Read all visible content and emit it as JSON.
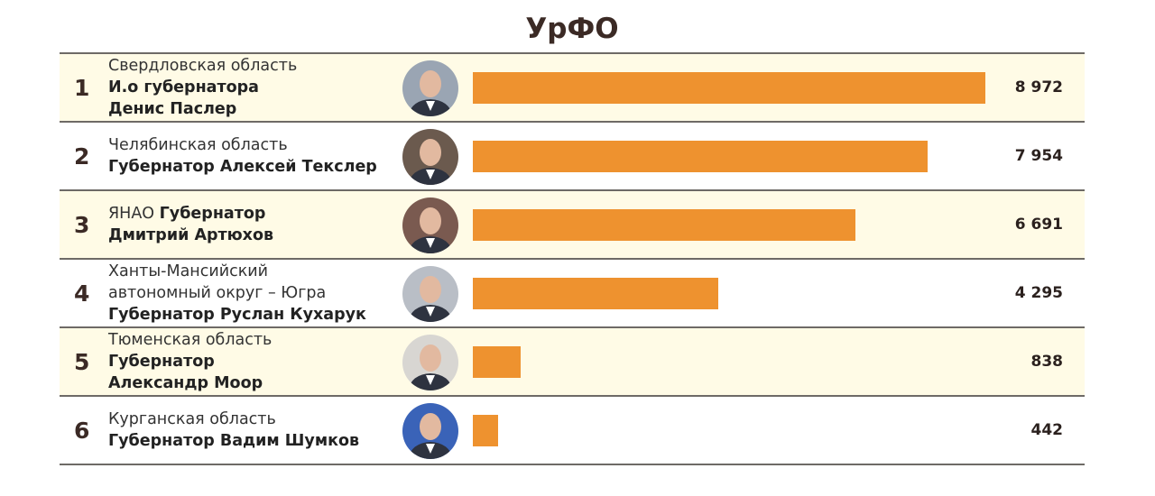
{
  "chart_data": {
    "type": "bar",
    "orientation": "horizontal",
    "title": "УрФО",
    "bar_color": "#ee922f",
    "row_alt_color": "#fffbe6",
    "rows": [
      {
        "rank": "1",
        "region": "Свердловская область",
        "title_line": "И.о губернатора",
        "name": "Денис Паслер",
        "value": 8972,
        "value_label": "8 972",
        "photo_bg": "#9aa5b3"
      },
      {
        "rank": "2",
        "region": "Челябинская область",
        "title_line": "Губернатор Алексей Текслер",
        "name": "",
        "value": 7954,
        "value_label": "7 954",
        "photo_bg": "#6b5a4e"
      },
      {
        "rank": "3",
        "region": "ЯНАО",
        "title_line": "Губернатор",
        "name": "Дмитрий Артюхов",
        "value": 6691,
        "value_label": "6 691",
        "photo_bg": "#7a5a50"
      },
      {
        "rank": "4",
        "region": "Ханты-Мансийский автономный округ – Югра",
        "title_line": "Губернатор Руслан Кухарук",
        "name": "",
        "value": 4295,
        "value_label": "4 295",
        "photo_bg": "#b9bec6"
      },
      {
        "rank": "5",
        "region": "Тюменская область",
        "title_line": "Губернатор",
        "name": "Александр Моор",
        "value": 838,
        "value_label": "838",
        "photo_bg": "#d8d6d2"
      },
      {
        "rank": "6",
        "region": "Курганская область",
        "title_line": "Губернатор Вадим Шумков",
        "name": "",
        "value": 442,
        "value_label": "442",
        "photo_bg": "#3a63b8"
      }
    ],
    "xlim": [
      0,
      8972
    ]
  }
}
